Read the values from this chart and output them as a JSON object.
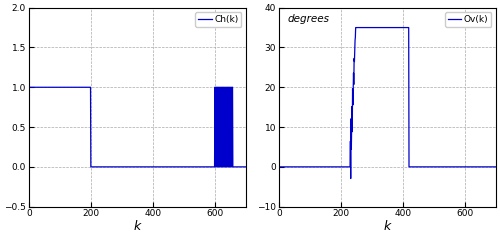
{
  "left_legend": "Ch(k)",
  "right_legend": "Ov(k)",
  "right_ylabel": "degrees",
  "xlabel": "k",
  "left_xlim": [
    0,
    700
  ],
  "left_ylim": [
    -0.5,
    2.0
  ],
  "right_xlim": [
    0,
    700
  ],
  "right_ylim": [
    -10,
    40
  ],
  "left_yticks": [
    -0.5,
    0.0,
    0.5,
    1.0,
    1.5,
    2.0
  ],
  "right_yticks": [
    -10,
    0,
    10,
    20,
    30,
    40
  ],
  "xticks": [
    0,
    200,
    400,
    600
  ],
  "line_color": "#0000cc",
  "bg_color": "#ffffff",
  "grid_color": "#aaaaaa",
  "figsize": [
    5.0,
    2.37
  ],
  "dpi": 100
}
